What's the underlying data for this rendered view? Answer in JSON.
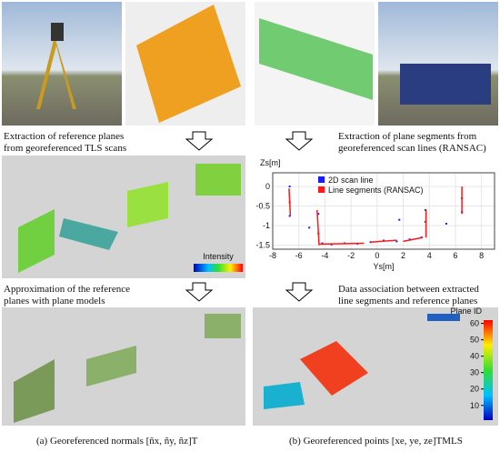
{
  "captions": {
    "tls_extraction": [
      "Extraction of reference planes",
      "from georeferenced TLS scans"
    ],
    "mls_extraction": [
      "Extraction of plane segments from",
      "georeferenced scan lines (RANSAC)"
    ],
    "approximation": [
      "Approximation of the reference",
      "planes with plane models"
    ],
    "association": [
      "Data association between extracted",
      "line segments and reference planes"
    ],
    "panel_a": "(a) Georeferenced normals [ñx, ñy, ñz]T",
    "panel_b": "(b) Georeferenced points [xe, ye, ze]TMLS"
  },
  "colorbars": {
    "intensity": {
      "label": "Intensity"
    },
    "plane_id": {
      "label": "Plane ID",
      "lim": [
        1,
        62
      ],
      "ticks": [
        10,
        20,
        30,
        40,
        50,
        60
      ]
    }
  },
  "chart_data": {
    "type": "scatter-line",
    "xlabel": "Ys[m]",
    "ylabel": "Zs[m]",
    "xlim": [
      -8,
      9
    ],
    "ylim": [
      -1.6,
      0.35
    ],
    "xticks": [
      -8,
      -6,
      -4,
      -2,
      0,
      2,
      4,
      6,
      8
    ],
    "yticks": [
      0,
      -0.5,
      -1,
      -1.5
    ],
    "series": [
      {
        "name": "2D scan line",
        "color": "#1a1aff",
        "x": [
          -6.7,
          -6.7,
          -6.7,
          -4.5,
          -4.5,
          -4.2,
          -3.5,
          -2.5,
          -1.5,
          -0.5,
          0.5,
          1.5,
          2.5,
          3.4,
          3.7,
          3.7,
          6.5,
          6.5,
          -5.2,
          1.7,
          5.3
        ],
        "y": [
          0.0,
          -0.4,
          -0.75,
          -0.7,
          -1.2,
          -1.45,
          -1.48,
          -1.45,
          -1.46,
          -1.42,
          -1.38,
          -1.4,
          -1.35,
          -1.3,
          -0.9,
          -0.6,
          -0.3,
          -0.65,
          -1.05,
          -0.85,
          -0.95
        ]
      },
      {
        "name": "Line segments (RANSAC)",
        "color": "#ff1a1a",
        "x": [
          -6.75,
          -6.65,
          null,
          -4.6,
          -4.45,
          null,
          -4.4,
          -1.0,
          null,
          -0.5,
          1.5,
          null,
          2.0,
          3.5,
          null,
          3.75,
          3.75,
          null,
          6.5,
          6.5
        ],
        "y": [
          -0.05,
          -0.75,
          null,
          -0.6,
          -1.5,
          null,
          -1.47,
          -1.45,
          null,
          -1.42,
          -1.37,
          null,
          -1.4,
          -1.3,
          null,
          -0.6,
          -1.3,
          null,
          0.0,
          -0.7
        ]
      }
    ]
  }
}
